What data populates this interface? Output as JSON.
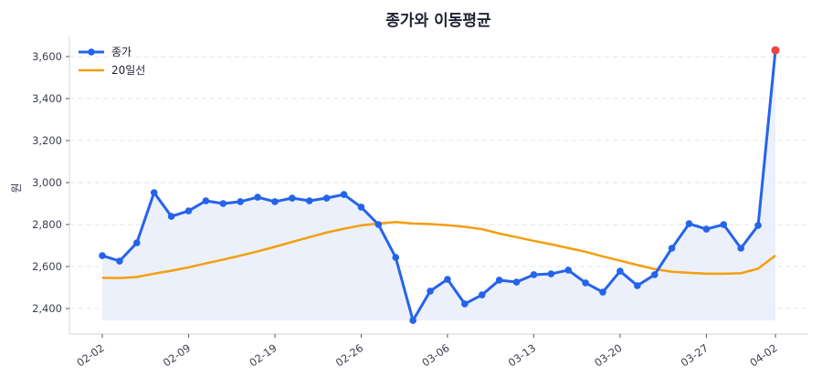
{
  "chart_data": {
    "type": "line",
    "title": "종가와 이동평균",
    "xlabel": "",
    "ylabel": "원",
    "ylim": [
      2290,
      3690
    ],
    "yticks": [
      2400,
      2600,
      2800,
      3000,
      3200,
      3400,
      3600
    ],
    "ytick_labels": [
      "2,400",
      "2,600",
      "2,800",
      "3,000",
      "3,200",
      "3,400",
      "3,600"
    ],
    "xtick_indices": [
      0,
      5,
      10,
      15,
      20,
      25,
      30,
      35,
      39
    ],
    "xtick_labels": [
      "02-02",
      "02-09",
      "02-19",
      "02-26",
      "03-06",
      "03-13",
      "03-20",
      "03-27",
      "04-02"
    ],
    "grid": true,
    "legend_position": "upper left",
    "x_count": 40,
    "series": [
      {
        "name": "종가",
        "color": "#2563eb",
        "marker": "circle",
        "fill_color": "#e9eefb",
        "values": [
          2652,
          2626,
          2713,
          2952,
          2839,
          2865,
          2913,
          2900,
          2909,
          2930,
          2909,
          2926,
          2913,
          2926,
          2943,
          2883,
          2800,
          2643,
          2343,
          2483,
          2539,
          2422,
          2465,
          2535,
          2526,
          2561,
          2565,
          2583,
          2522,
          2478,
          2578,
          2509,
          2561,
          2687,
          2804,
          2778,
          2800,
          2687,
          2796,
          3630
        ]
      },
      {
        "name": "20일선",
        "color": "#f59e0b",
        "values": [
          2546,
          2545,
          2550,
          2566,
          2580,
          2596,
          2615,
          2633,
          2652,
          2672,
          2694,
          2717,
          2740,
          2762,
          2780,
          2796,
          2805,
          2812,
          2805,
          2802,
          2797,
          2789,
          2778,
          2757,
          2740,
          2722,
          2706,
          2688,
          2670,
          2648,
          2628,
          2607,
          2588,
          2575,
          2570,
          2566,
          2566,
          2568,
          2590,
          2652
        ]
      }
    ],
    "highlight_last": {
      "index": 39,
      "value": 3630,
      "color": "#ef4444"
    }
  }
}
